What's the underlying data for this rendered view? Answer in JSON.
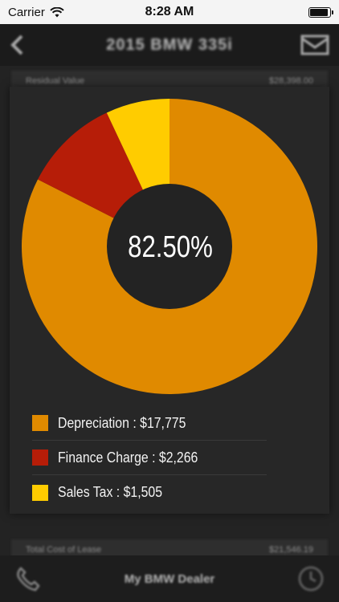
{
  "status_bar": {
    "carrier": "Carrier",
    "time": "8:28 AM",
    "battery_level": 0.95
  },
  "nav": {
    "title": "2015 BMW 335i",
    "back_icon": "chevron-left-icon",
    "action_icon": "mail-icon"
  },
  "background_rows": {
    "top": {
      "label": "Residual Value",
      "value": "$28,398.00"
    },
    "bottom": {
      "label": "Total Cost of Lease",
      "value": "$21,546.19"
    }
  },
  "chart_data": {
    "type": "pie",
    "donut": true,
    "center_label": "82.50%",
    "slices": [
      {
        "name": "Depreciation",
        "value": 17775,
        "label": "Depreciation : $17,775",
        "color": "#E08A00"
      },
      {
        "name": "Finance Charge",
        "value": 2266,
        "label": "Finance Charge : $2,266",
        "color": "#B61D08"
      },
      {
        "name": "Sales Tax",
        "value": 1505,
        "label": "Sales Tax : $1,505",
        "color": "#FFCC00"
      }
    ]
  },
  "tab_bar": {
    "label": "My BMW Dealer",
    "left_icon": "phone-icon",
    "right_icon": "clock-icon"
  }
}
